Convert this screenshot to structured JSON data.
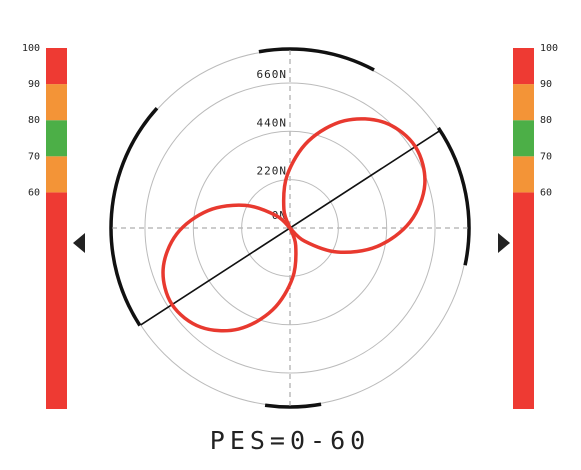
{
  "chart_data": {
    "type": "polar",
    "title": "PES=0-60",
    "rlim": [
      0,
      810
    ],
    "rticks": [
      {
        "value": 0,
        "label": "0N"
      },
      {
        "value": 220,
        "label": "220N"
      },
      {
        "value": 440,
        "label": "440N"
      },
      {
        "value": 660,
        "label": "660N"
      }
    ],
    "grid": true,
    "angle_line": 33,
    "series": [
      {
        "color": "#e8392f",
        "theta": [
          -57,
          -42,
          -27,
          -12,
          3,
          18,
          33,
          48,
          63,
          78,
          93,
          108,
          123,
          123,
          138,
          153,
          168,
          183,
          198,
          213,
          228,
          243,
          258,
          273,
          288,
          303
        ],
        "values": [
          0,
          90,
          241,
          405,
          548,
          645,
          680,
          645,
          548,
          405,
          241,
          90,
          0,
          0,
          84,
          227,
          381,
          516,
          607,
          640,
          607,
          516,
          381,
          227,
          84,
          0
        ]
      }
    ],
    "gauges": [
      {
        "side": "left",
        "ylim": [
          0,
          100
        ],
        "yticks": [
          60,
          70,
          80,
          90,
          100
        ],
        "bands": [
          {
            "from": 0,
            "to": 60,
            "color": "#ee3a33"
          },
          {
            "from": 60,
            "to": 70,
            "color": "#f39437"
          },
          {
            "from": 70,
            "to": 80,
            "color": "#4caf47"
          },
          {
            "from": 80,
            "to": 90,
            "color": "#f39437"
          },
          {
            "from": 90,
            "to": 100,
            "color": "#ee3a33"
          }
        ],
        "marker": 46
      },
      {
        "side": "right",
        "ylim": [
          0,
          100
        ],
        "yticks": [
          60,
          70,
          80,
          90,
          100
        ],
        "bands": [
          {
            "from": 0,
            "to": 60,
            "color": "#ee3a33"
          },
          {
            "from": 60,
            "to": 70,
            "color": "#f39437"
          },
          {
            "from": 70,
            "to": 80,
            "color": "#4caf47"
          },
          {
            "from": 80,
            "to": 90,
            "color": "#f39437"
          },
          {
            "from": 90,
            "to": 100,
            "color": "#ee3a33"
          }
        ],
        "marker": 46
      }
    ]
  }
}
